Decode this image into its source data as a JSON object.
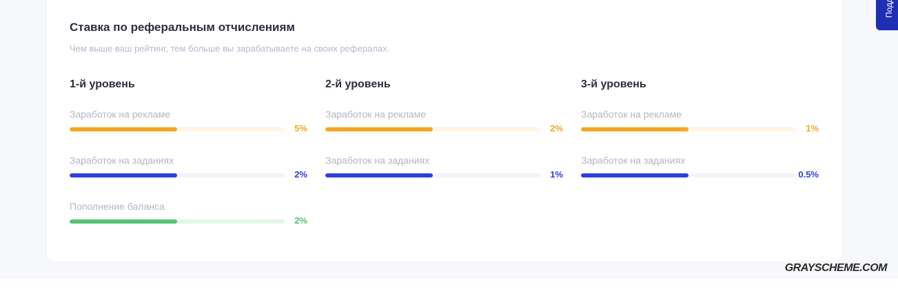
{
  "card": {
    "title": "Ставка по реферальным отчислениям",
    "subtitle": "Чем выше ваш рейтинг, тем больше вы зарабатываете на своих рефералах."
  },
  "colors": {
    "ads": "#f5a623",
    "ads_track": "#fff6e3",
    "tasks": "#2f3fe0",
    "tasks_track": "#f3f4fb",
    "balance": "#56c271",
    "balance_track": "#e2f6e7"
  },
  "levels": [
    {
      "title": "1-й уровень",
      "metrics": [
        {
          "label": "Заработок на рекламе",
          "value": "5%",
          "fill_fraction": 0.5,
          "kind": "ads"
        },
        {
          "label": "Заработок на заданиях",
          "value": "2%",
          "fill_fraction": 0.5,
          "kind": "tasks"
        },
        {
          "label": "Пополнение баланса",
          "value": "2%",
          "fill_fraction": 0.5,
          "kind": "balance"
        }
      ]
    },
    {
      "title": "2-й уровень",
      "metrics": [
        {
          "label": "Заработок на рекламе",
          "value": "2%",
          "fill_fraction": 0.5,
          "kind": "ads"
        },
        {
          "label": "Заработок на заданиях",
          "value": "1%",
          "fill_fraction": 0.5,
          "kind": "tasks"
        }
      ]
    },
    {
      "title": "3-й уровень",
      "metrics": [
        {
          "label": "Заработок на рекламе",
          "value": "1%",
          "fill_fraction": 0.5,
          "kind": "ads"
        },
        {
          "label": "Заработок на заданиях",
          "value": "0.5%",
          "fill_fraction": 0.5,
          "kind": "tasks"
        }
      ]
    }
  ],
  "side_tab": {
    "label": "Подд"
  },
  "watermark": "GRAYSCHEME.COM"
}
